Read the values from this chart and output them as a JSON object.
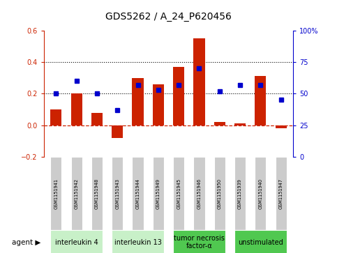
{
  "title": "GDS5262 / A_24_P620456",
  "samples": [
    "GSM1151941",
    "GSM1151942",
    "GSM1151948",
    "GSM1151943",
    "GSM1151944",
    "GSM1151949",
    "GSM1151945",
    "GSM1151946",
    "GSM1151950",
    "GSM1151939",
    "GSM1151940",
    "GSM1151947"
  ],
  "log2_ratio": [
    0.1,
    0.2,
    0.08,
    -0.08,
    0.3,
    0.26,
    0.37,
    0.55,
    0.02,
    0.01,
    0.31,
    -0.02
  ],
  "percentile_rank_pct": [
    50,
    60,
    50,
    37,
    57,
    53,
    57,
    70,
    52,
    57,
    57,
    45
  ],
  "agents": [
    {
      "label": "interleukin 4",
      "start": 0,
      "end": 3,
      "color": "#c8f0c8"
    },
    {
      "label": "interleukin 13",
      "start": 3,
      "end": 6,
      "color": "#c8f0c8"
    },
    {
      "label": "tumor necrosis\nfactor-α",
      "start": 6,
      "end": 9,
      "color": "#50c850"
    },
    {
      "label": "unstimulated",
      "start": 9,
      "end": 12,
      "color": "#50c850"
    }
  ],
  "ylim_left": [
    -0.2,
    0.6
  ],
  "ylim_right": [
    0,
    100
  ],
  "bar_color": "#cc2200",
  "dot_color": "#0000cc",
  "hline_color": "#cc2200",
  "grid_color": "#000000",
  "bg_color": "#ffffff",
  "sample_box_color": "#cccccc",
  "bar_width": 0.55,
  "title_fontsize": 10,
  "tick_fontsize": 7,
  "sample_fontsize": 4.8,
  "agent_fontsize": 7
}
